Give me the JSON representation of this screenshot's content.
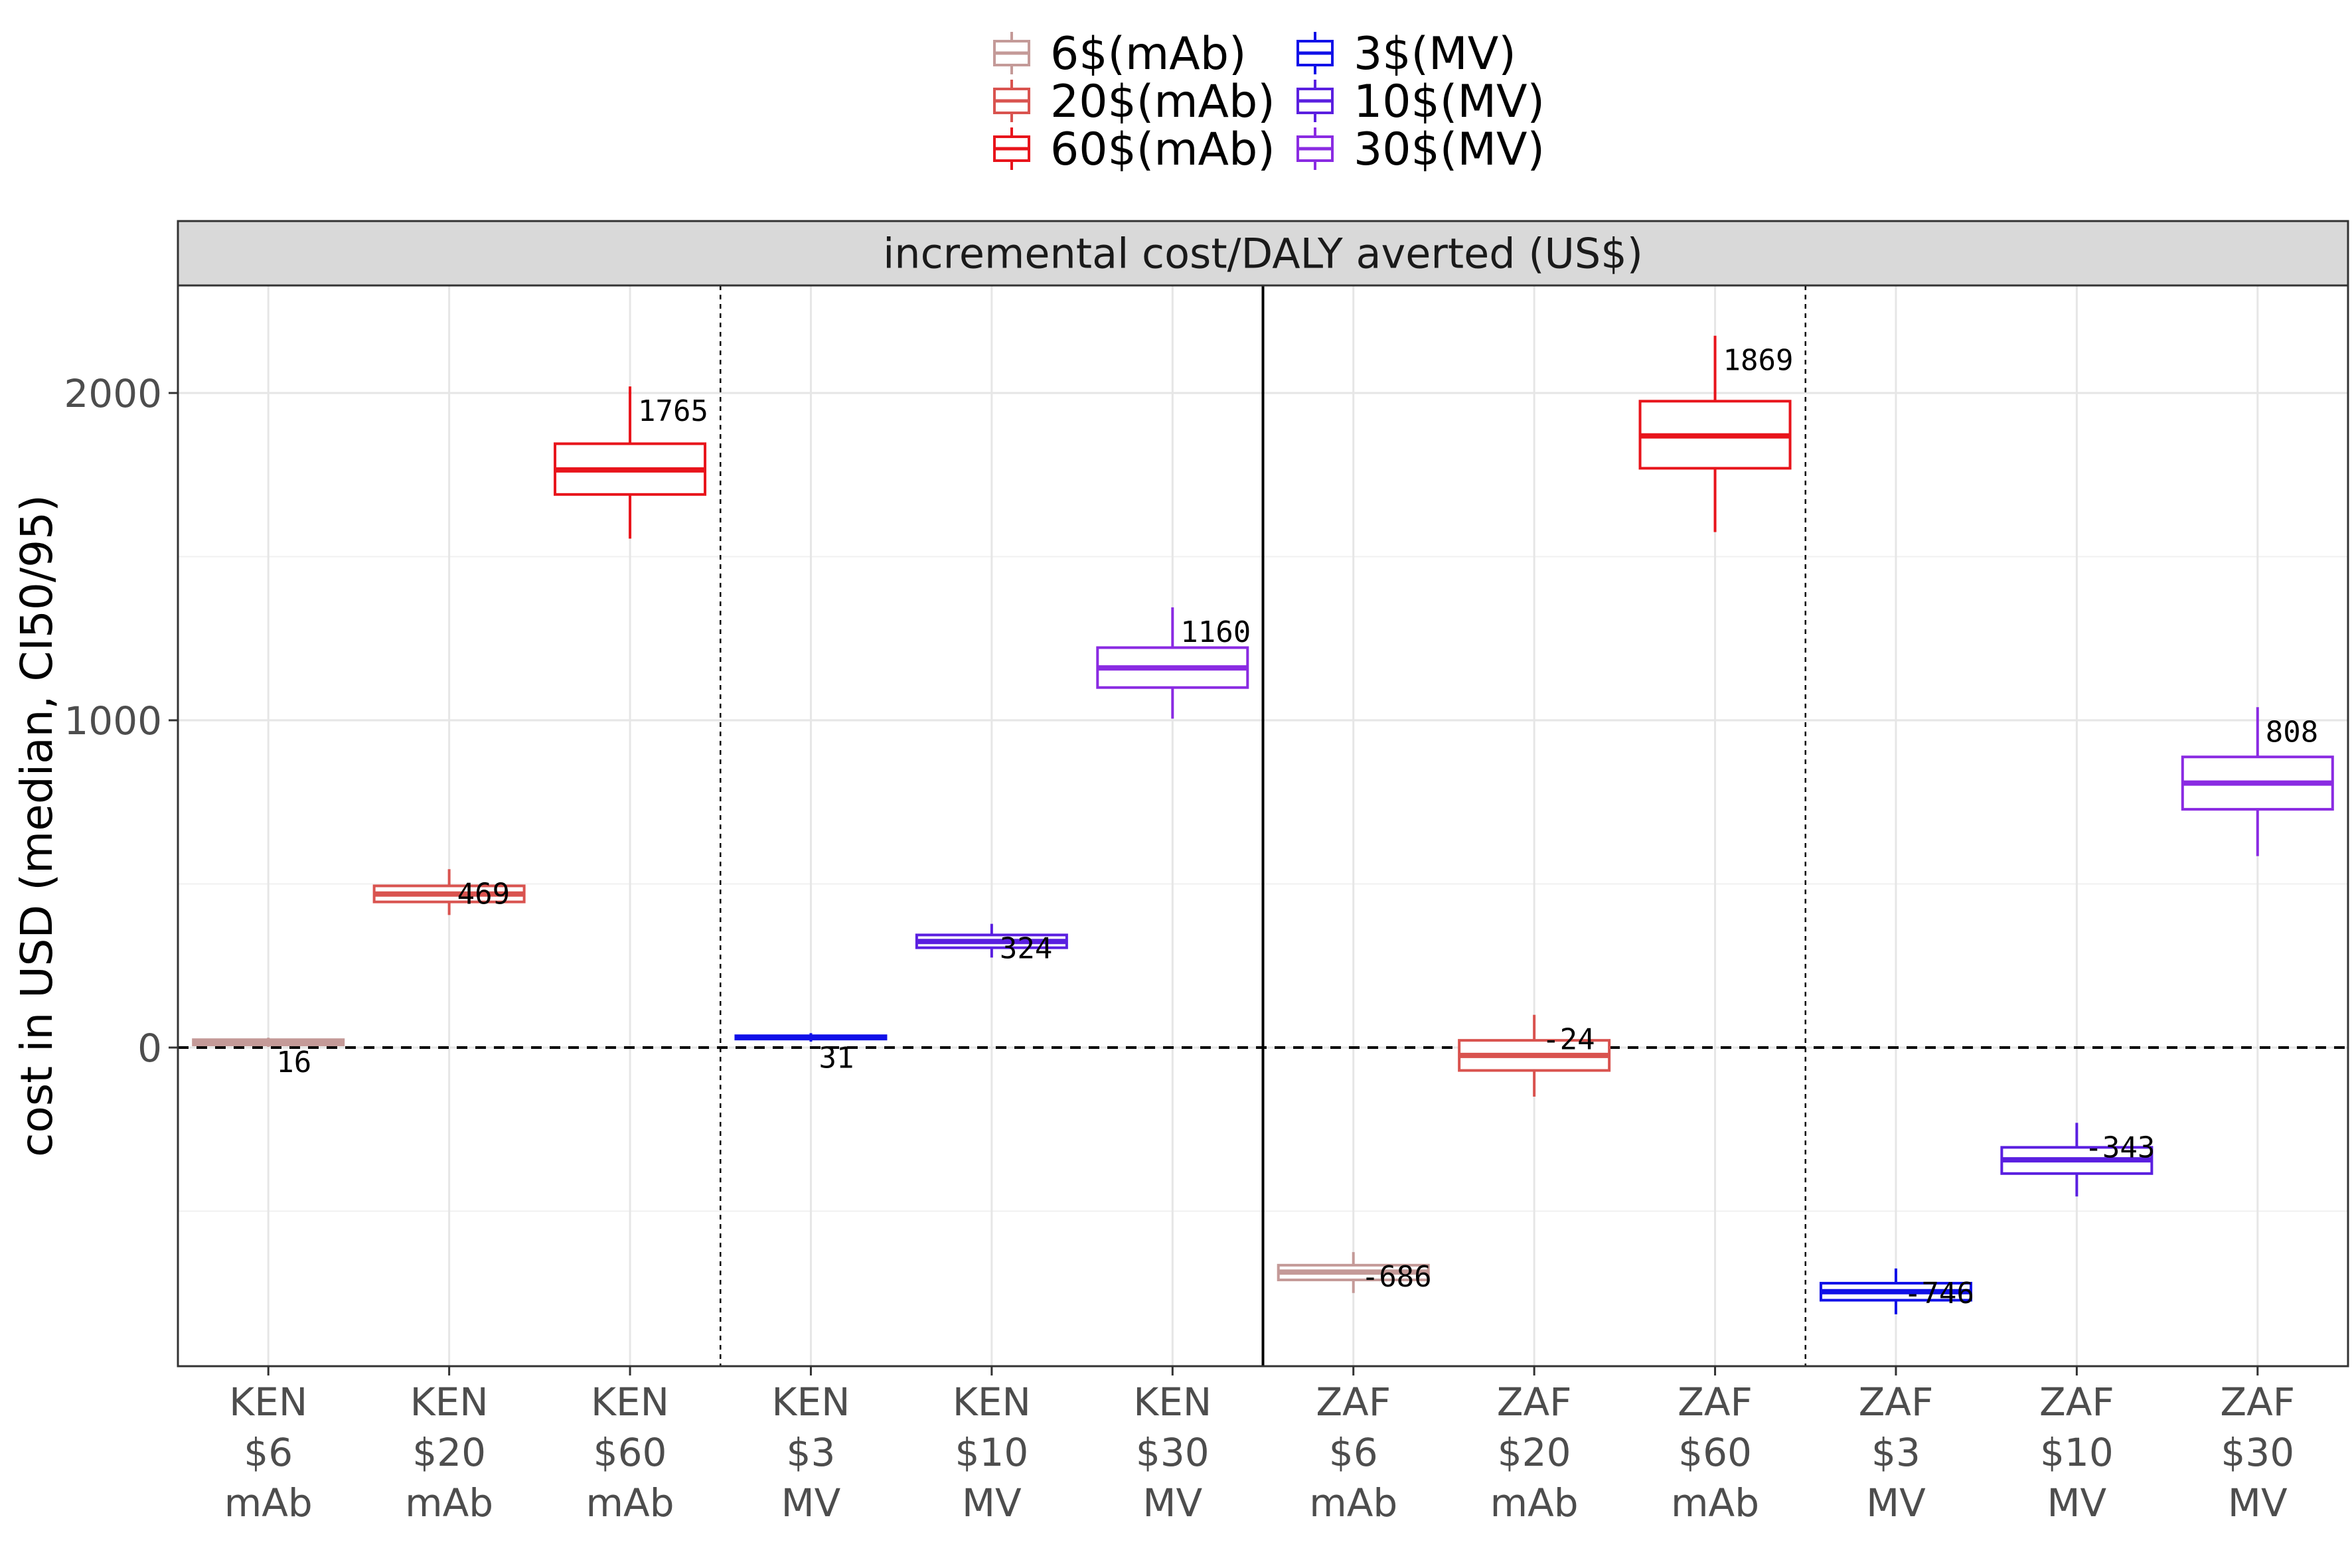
{
  "chart_data": {
    "type": "box",
    "panel_title": "incremental cost/DALY averted (US$)",
    "ylabel": "cost in USD (median, CI50/95)",
    "xlabel": "",
    "ylim": [
      -980,
      2330
    ],
    "y_ticks": [
      0,
      1000,
      2000
    ],
    "y_minor_ticks": [
      -500,
      500,
      1500
    ],
    "y_tick_labels": [
      "0",
      "1000",
      "2000"
    ],
    "grid": true,
    "legend_position": "top",
    "reference_line_y": 0,
    "legend": [
      {
        "name": "6$(mAb)",
        "color": "#c49a98"
      },
      {
        "name": "20$(mAb)",
        "color": "#d9534f"
      },
      {
        "name": "60$(mAb)",
        "color": "#e8141b"
      },
      {
        "name": "3$(MV)",
        "color": "#1010e8"
      },
      {
        "name": "10$(MV)",
        "color": "#5a1fe0"
      },
      {
        "name": "30$(MV)",
        "color": "#8a2be2"
      }
    ],
    "categories": [
      {
        "lines": [
          "KEN",
          "$6",
          "mAb"
        ],
        "series": "6$(mAb)",
        "median": 16,
        "q1": 8,
        "q3": 24,
        "lo": 2,
        "hi": 30,
        "label": "16"
      },
      {
        "lines": [
          "KEN",
          "$20",
          "mAb"
        ],
        "series": "20$(mAb)",
        "median": 469,
        "q1": 445,
        "q3": 494,
        "lo": 405,
        "hi": 545,
        "label": "469"
      },
      {
        "lines": [
          "KEN",
          "$60",
          "mAb"
        ],
        "series": "60$(mAb)",
        "median": 1765,
        "q1": 1690,
        "q3": 1845,
        "lo": 1555,
        "hi": 2020,
        "label": "1765"
      },
      {
        "lines": [
          "KEN",
          "$3",
          "MV"
        ],
        "series": "3$(MV)",
        "median": 31,
        "q1": 26,
        "q3": 36,
        "lo": 18,
        "hi": 44,
        "label": "31"
      },
      {
        "lines": [
          "KEN",
          "$10",
          "MV"
        ],
        "series": "10$(MV)",
        "median": 324,
        "q1": 305,
        "q3": 344,
        "lo": 275,
        "hi": 378,
        "label": "324"
      },
      {
        "lines": [
          "KEN",
          "$30",
          "MV"
        ],
        "series": "30$(MV)",
        "median": 1160,
        "q1": 1100,
        "q3": 1222,
        "lo": 1005,
        "hi": 1345,
        "label": "1160"
      },
      {
        "lines": [
          "ZAF",
          "$6",
          "mAb"
        ],
        "series": "6$(mAb)",
        "median": -686,
        "q1": -710,
        "q3": -665,
        "lo": -750,
        "hi": -625,
        "label": "-686"
      },
      {
        "lines": [
          "ZAF",
          "$20",
          "mAb"
        ],
        "series": "20$(mAb)",
        "median": -24,
        "q1": -70,
        "q3": 22,
        "lo": -150,
        "hi": 100,
        "label": "-24"
      },
      {
        "lines": [
          "ZAF",
          "$60",
          "mAb"
        ],
        "series": "60$(mAb)",
        "median": 1869,
        "q1": 1770,
        "q3": 1975,
        "lo": 1575,
        "hi": 2175,
        "label": "1869"
      },
      {
        "lines": [
          "ZAF",
          "$3",
          "MV"
        ],
        "series": "3$(MV)",
        "median": -746,
        "q1": -772,
        "q3": -720,
        "lo": -815,
        "hi": -675,
        "label": "-746"
      },
      {
        "lines": [
          "ZAF",
          "$10",
          "MV"
        ],
        "series": "10$(MV)",
        "median": -343,
        "q1": -385,
        "q3": -305,
        "lo": -455,
        "hi": -230,
        "label": "-343"
      },
      {
        "lines": [
          "ZAF",
          "$30",
          "MV"
        ],
        "series": "30$(MV)",
        "median": 808,
        "q1": 728,
        "q3": 888,
        "lo": 585,
        "hi": 1040,
        "label": "808"
      }
    ],
    "separators": [
      {
        "after_index": 2,
        "style": "dashed"
      },
      {
        "after_index": 5,
        "style": "solid"
      },
      {
        "after_index": 8,
        "style": "dashed"
      }
    ]
  }
}
